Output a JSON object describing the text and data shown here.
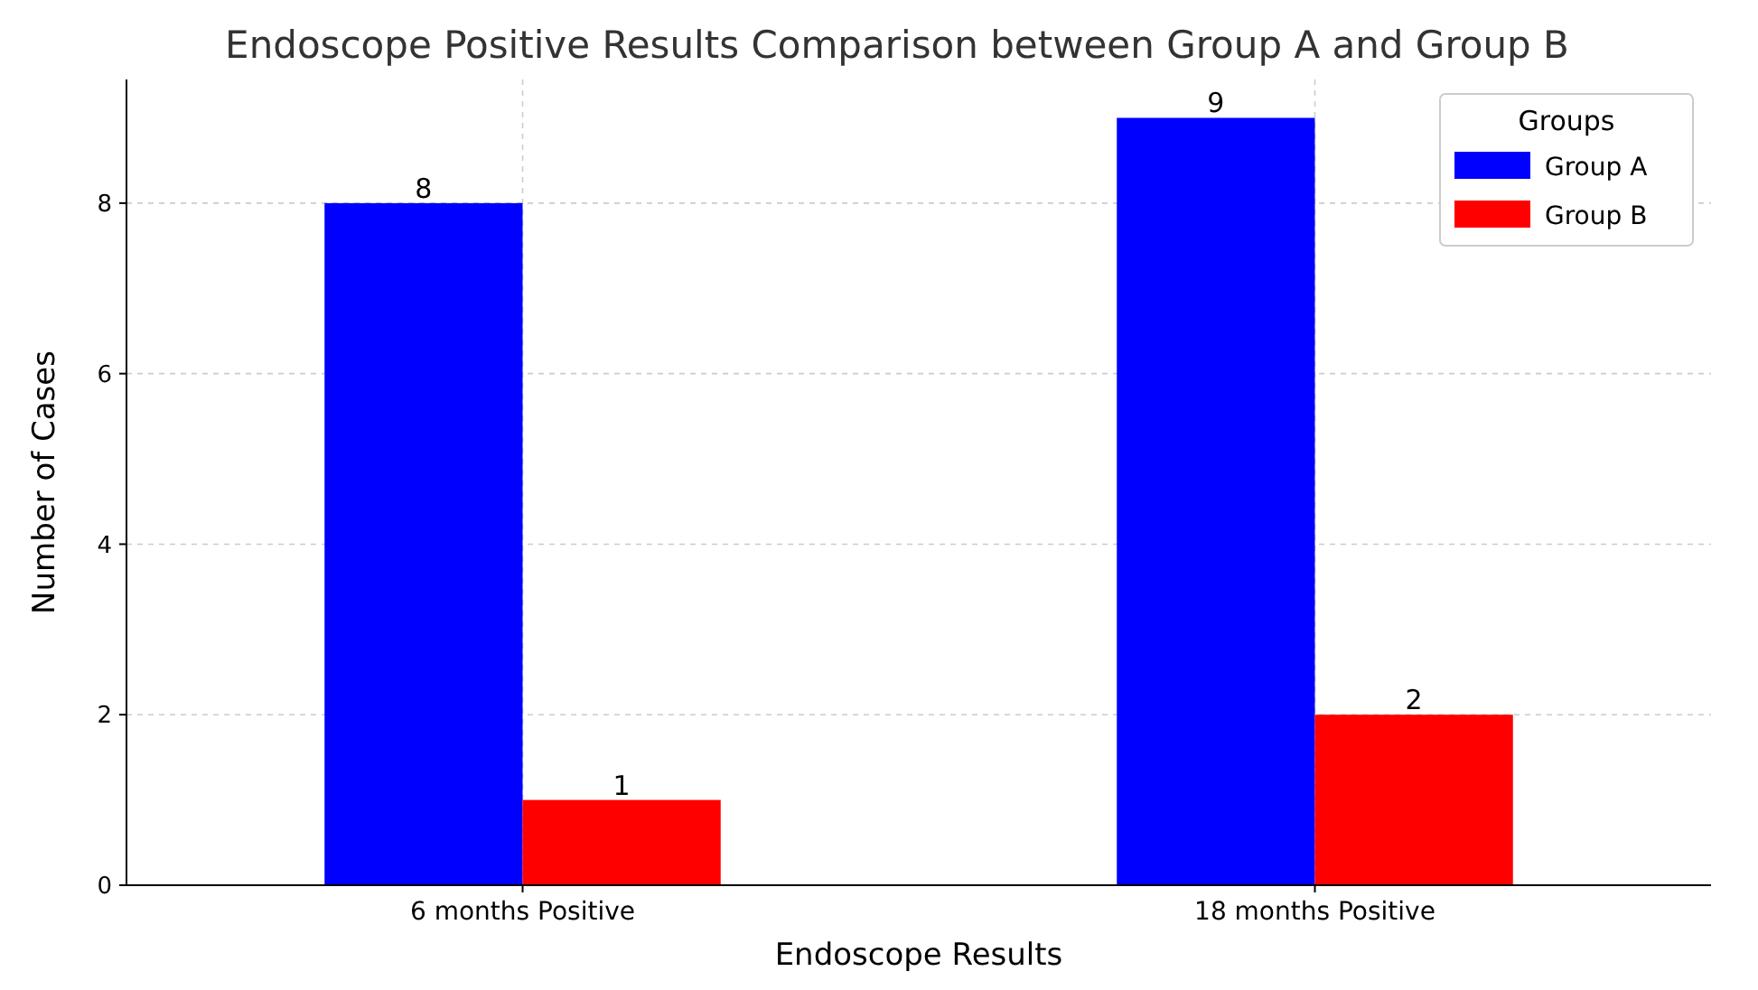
{
  "chart_data": {
    "type": "bar",
    "title": "Endoscope Positive Results Comparison between Group A and Group B",
    "xlabel": "Endoscope Results",
    "ylabel": "Number of Cases",
    "legend_title": "Groups",
    "categories": [
      "6 months Positive",
      "18 months Positive"
    ],
    "series": [
      {
        "name": "Group A",
        "color": "#0000ff",
        "values": [
          8,
          9
        ]
      },
      {
        "name": "Group B",
        "color": "#ff0000",
        "values": [
          1,
          2
        ]
      }
    ],
    "ylim": [
      0,
      9.45
    ],
    "yticks": [
      0,
      2,
      4,
      6,
      8
    ],
    "grid": true,
    "legend": "top right",
    "data_labels": true
  }
}
